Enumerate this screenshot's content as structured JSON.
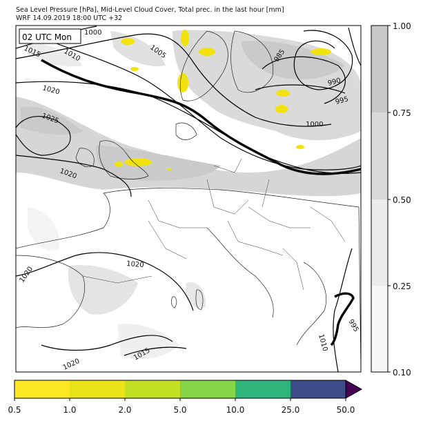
{
  "header": {
    "title_line1": "Sea Level Pressure [hPa], Mid-Level Cloud Cover, Total prec. in the last hour [mm]",
    "title_line2": "WRF 14.09.2019 18:00 UTC +32"
  },
  "map": {
    "time_box": "02 UTC Mon",
    "isobar_labels": [
      "1000",
      "1005",
      "1010",
      "1015",
      "1020",
      "1025",
      "985",
      "990",
      "995",
      "1000",
      "1020",
      "1020",
      "1020",
      "1020",
      "1015",
      "1010",
      "995"
    ]
  },
  "cloud_colorbar": {
    "ticks": [
      "1.00",
      "0.75",
      "0.50",
      "0.25",
      "0.10"
    ],
    "levels": [
      {
        "range": "0.75-1.00",
        "color": "#c8c8c8"
      },
      {
        "range": "0.50-0.75",
        "color": "#d9d9d9"
      },
      {
        "range": "0.25-0.50",
        "color": "#ebebeb"
      },
      {
        "range": "0.10-0.25",
        "color": "#f7f7f7"
      }
    ]
  },
  "precip_colorbar": {
    "ticks": [
      "0.5",
      "1.0",
      "2.0",
      "5.0",
      "10.0",
      "25.0",
      "50.0"
    ],
    "colors": [
      "#fde725",
      "#e8e419",
      "#c2df23",
      "#86d549",
      "#2fb47c",
      "#3e4c8a",
      "#440154"
    ]
  }
}
